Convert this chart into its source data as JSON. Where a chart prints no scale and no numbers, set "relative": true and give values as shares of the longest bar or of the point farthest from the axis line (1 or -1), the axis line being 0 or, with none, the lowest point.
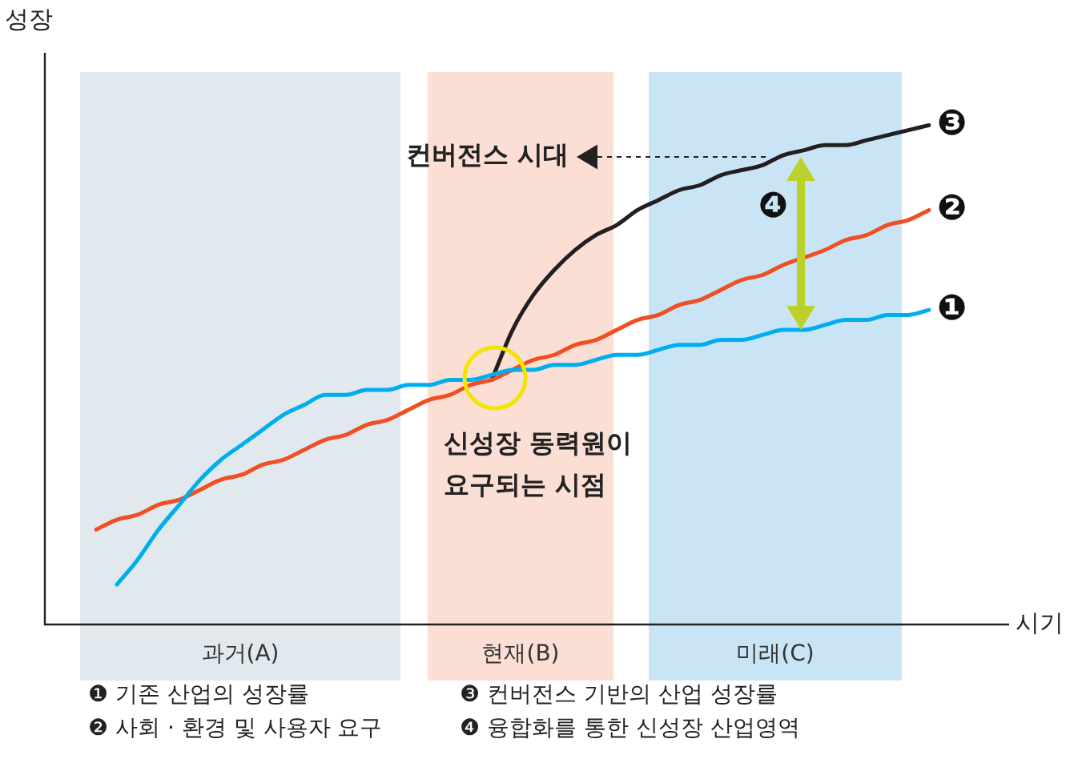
{
  "chart_data": {
    "type": "line",
    "relative": true,
    "xlabel": "시기",
    "ylabel": "성장",
    "grid": false,
    "legend": false,
    "marker": "none",
    "line_style": "solid",
    "categories": [
      null,
      null,
      null,
      null,
      null,
      null,
      null,
      null,
      null,
      null,
      null,
      null,
      null,
      null,
      null,
      null,
      null,
      null,
      null,
      null,
      null,
      null,
      null,
      null,
      null,
      null,
      null,
      null,
      null,
      null,
      null,
      null,
      null,
      null,
      null,
      null,
      null,
      null,
      null,
      null,
      null
    ],
    "series": [
      {
        "name": "❶",
        "color": "#00aeef",
        "values": [
          null,
          0.08,
          0.13,
          0.19,
          0.24,
          0.29,
          0.33,
          0.36,
          0.39,
          0.42,
          0.44,
          0.46,
          0.46,
          0.47,
          0.47,
          0.48,
          0.48,
          0.49,
          0.49,
          0.5,
          0.51,
          0.51,
          0.52,
          0.52,
          0.53,
          0.54,
          0.54,
          0.55,
          0.56,
          0.56,
          0.57,
          0.57,
          0.58,
          0.59,
          0.59,
          0.6,
          0.61,
          0.61,
          0.62,
          0.62,
          0.63
        ]
      },
      {
        "name": "❷",
        "color": "#f04e23",
        "values": [
          0.19,
          0.21,
          0.22,
          0.24,
          0.25,
          0.27,
          0.29,
          0.3,
          0.32,
          0.33,
          0.35,
          0.37,
          0.38,
          0.4,
          0.41,
          0.43,
          0.45,
          0.46,
          0.48,
          0.49,
          0.51,
          0.53,
          0.54,
          0.56,
          0.57,
          0.59,
          0.61,
          0.62,
          0.64,
          0.65,
          0.67,
          0.69,
          0.7,
          0.72,
          null,
          0.75,
          0.77,
          0.78,
          0.8,
          0.81,
          0.83
        ]
      },
      {
        "name": "❸",
        "color": "#231f20",
        "values": [
          null,
          null,
          null,
          null,
          null,
          null,
          null,
          null,
          null,
          null,
          null,
          null,
          null,
          null,
          null,
          null,
          null,
          null,
          null,
          0.49,
          0.59,
          0.66,
          0.71,
          0.75,
          0.78,
          0.8,
          0.83,
          0.85,
          0.87,
          0.88,
          0.9,
          0.91,
          0.92,
          0.94,
          0.95,
          0.96,
          0.96,
          0.97,
          0.98,
          0.99,
          1
        ]
      }
    ],
    "annotations": [
      "컨버전스 시대",
      "신성장 동력원이\n요구되는 시점",
      "❹",
      "과거(A)",
      "현재(B)",
      "미래(C)",
      "❶ 기존 산업의 성장률",
      "❸ 컨버전스 기반의 산업 성장률",
      "❷ 사회 · 환경 및 사용자 요구",
      "❹ 융합화를 통한 신성장 산업영역"
    ]
  }
}
